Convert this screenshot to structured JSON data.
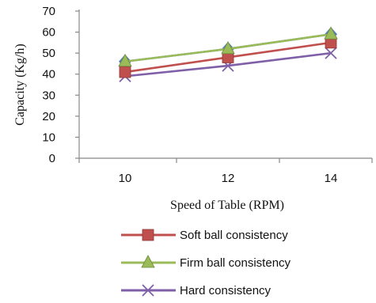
{
  "chart_data": {
    "type": "line",
    "xlabel": "Speed of  Table (RPM)",
    "ylabel": "Capacity (Kg/h)",
    "x": [
      10,
      12,
      14
    ],
    "ylim": [
      0,
      70
    ],
    "yticks": [
      0,
      10,
      20,
      30,
      40,
      50,
      60,
      70
    ],
    "grid": false,
    "legend_position": "bottom",
    "series": [
      {
        "key": "blue",
        "name": "",
        "values": [
          46,
          52,
          59
        ],
        "color": "#4f81bd",
        "marker": "diamond"
      },
      {
        "key": "soft",
        "name": "Soft ball consistency",
        "values": [
          41,
          48,
          55
        ],
        "color": "#c0504d",
        "marker": "square"
      },
      {
        "key": "firm",
        "name": "Firm ball consistency",
        "values": [
          46,
          52,
          59
        ],
        "color": "#9bbb59",
        "marker": "triangle"
      },
      {
        "key": "hard",
        "name": "Hard consistency",
        "values": [
          39,
          44,
          50
        ],
        "color": "#7f5fa8",
        "marker": "x"
      }
    ]
  }
}
